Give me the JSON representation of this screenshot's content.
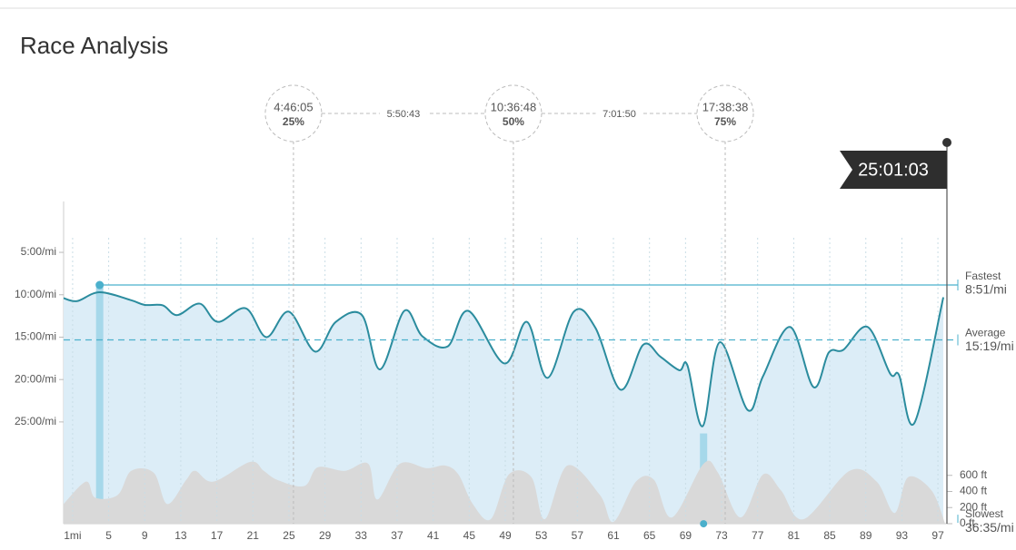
{
  "chart_data": {
    "type": "line",
    "title": "Race Analysis",
    "xlim": [
      0,
      98
    ],
    "xticks": [
      {
        "value": 1,
        "label": "1mi"
      },
      5,
      9,
      13,
      17,
      21,
      25,
      29,
      33,
      37,
      41,
      45,
      49,
      53,
      57,
      61,
      65,
      69,
      73,
      77,
      81,
      85,
      89,
      93,
      97
    ],
    "ylim": [
      -1,
      37
    ],
    "yticks": [
      {
        "value": 5,
        "label": "5:00/mi"
      },
      {
        "value": 10,
        "label": "10:00/mi"
      },
      {
        "value": 15,
        "label": "15:00/mi"
      },
      {
        "value": 20,
        "label": "20:00/mi"
      },
      {
        "value": 25,
        "label": "25:00/mi"
      }
    ],
    "y2lim": [
      0,
      4000
    ],
    "y2ticks": [
      {
        "value": 0,
        "label": "0 ft"
      },
      {
        "value": 200,
        "label": "200 ft"
      },
      {
        "value": 400,
        "label": "400 ft"
      },
      {
        "value": 600,
        "label": "600 ft"
      }
    ],
    "grid": true,
    "pace": {
      "color": "#2b8c9e",
      "fill": "#dcedf7",
      "x": [
        0,
        1.5,
        4,
        7.5,
        9,
        11,
        12.6,
        15.1,
        17.1,
        20.2,
        22.5,
        25,
        27.9,
        30.2,
        33.1,
        35.1,
        37.8,
        39.8,
        42.6,
        44.9,
        48.9,
        51.4,
        53.7,
        56.6,
        59,
        61.8,
        64.3,
        66.2,
        68.3,
        69.2,
        70.9,
        72.8,
        75.9,
        77.6,
        80.6,
        83.2,
        84.9,
        86.5,
        89.2,
        91.7,
        92.7,
        94.4,
        97.6
      ],
      "values": [
        10.4,
        10.75,
        9.7,
        10.65,
        11.2,
        11.25,
        12.4,
        11.05,
        13.2,
        11.6,
        15.0,
        12.0,
        16.7,
        13.2,
        12.4,
        18.8,
        11.9,
        14.9,
        16.1,
        11.9,
        18.1,
        13.2,
        19.8,
        12.0,
        13.9,
        21.2,
        15.9,
        17.3,
        18.9,
        18.3,
        25.5,
        15.6,
        23.6,
        19.6,
        13.8,
        20.9,
        16.8,
        16.5,
        13.8,
        19.3,
        19.5,
        25.1,
        10.3
      ]
    },
    "elevation": {
      "axis": "y2",
      "color": "#d9d9d9",
      "x": [
        0,
        2.5,
        3.5,
        6,
        7.5,
        10,
        11.5,
        13.6,
        14.6,
        16.6,
        20.7,
        22.2,
        23.7,
        26.7,
        28.2,
        31.2,
        33.8,
        34.8,
        37.3,
        40.3,
        42.3,
        43.8,
        45.4,
        47.4,
        49.4,
        51.9,
        53.4,
        55.9,
        59.5,
        61,
        63.5,
        65.5,
        67.5,
        71,
        72.6,
        75.1,
        77.6,
        79.6,
        82.1,
        87.2,
        90.2,
        92.2,
        93.7,
        96.3,
        97.8
      ],
      "values": [
        244,
        522,
        322,
        356,
        656,
        633,
        244,
        544,
        656,
        522,
        767,
        656,
        544,
        467,
        700,
        656,
        744,
        300,
        744,
        689,
        722,
        611,
        244,
        56,
        611,
        578,
        56,
        722,
        356,
        22,
        522,
        544,
        78,
        744,
        633,
        78,
        611,
        411,
        56,
        656,
        522,
        133,
        578,
        411,
        0
      ]
    },
    "fastest": {
      "label": "Fastest",
      "value": 8.85,
      "value_label": "8:51/mi",
      "mile": 4
    },
    "average": {
      "label": "Average",
      "value": 15.32,
      "value_label": "15:19/mi"
    },
    "slowest": {
      "label": "Slowest",
      "value": 36.58,
      "value_label": "36:35/mi",
      "mile": 71
    },
    "milestones": [
      {
        "time": "4:46:05",
        "percent": "25%",
        "mile": 25.5
      },
      {
        "time": "10:36:48",
        "percent": "50%",
        "mile": 49.9
      },
      {
        "time": "17:38:38",
        "percent": "75%",
        "mile": 73.4
      }
    ],
    "splits": [
      "5:50:43",
      "7:01:50"
    ],
    "finish": {
      "time": "25:01:03",
      "mile": 98
    }
  }
}
